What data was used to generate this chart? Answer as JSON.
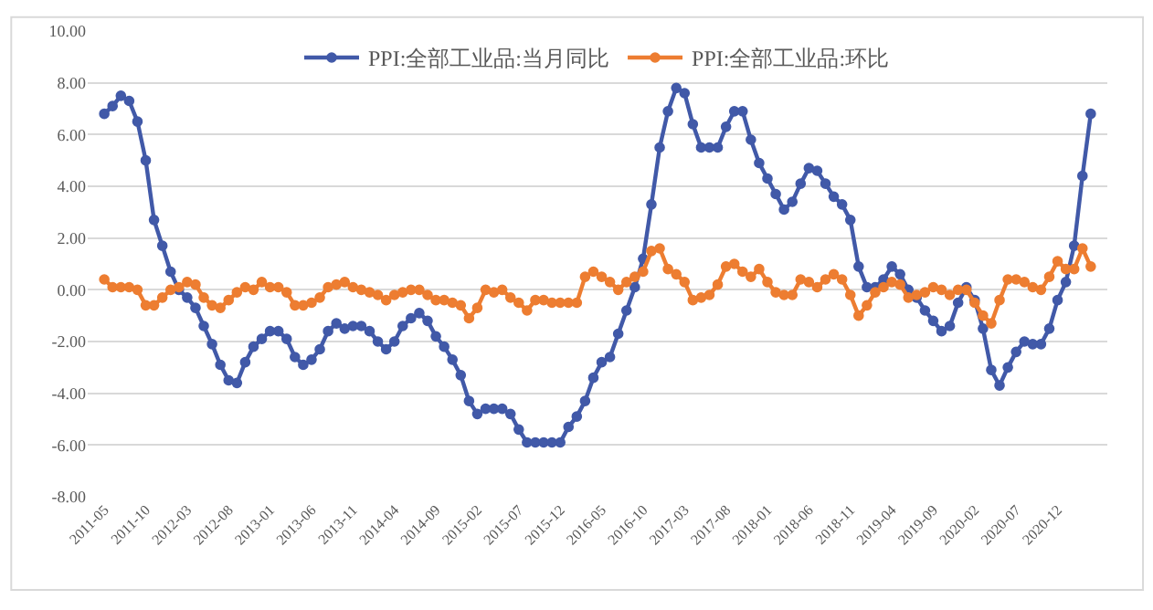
{
  "chart_data": {
    "type": "line",
    "categories": [
      "2011-05",
      null,
      null,
      null,
      null,
      "2011-10",
      null,
      null,
      null,
      null,
      "2012-03",
      null,
      null,
      null,
      null,
      "2012-08",
      null,
      null,
      null,
      null,
      "2013-01",
      null,
      null,
      null,
      null,
      "2013-06",
      null,
      null,
      null,
      null,
      "2013-11",
      null,
      null,
      null,
      null,
      "2014-04",
      null,
      null,
      null,
      null,
      "2014-09",
      null,
      null,
      null,
      null,
      "2015-02",
      null,
      null,
      null,
      null,
      "2015-07",
      null,
      null,
      null,
      null,
      "2015-12",
      null,
      null,
      null,
      null,
      "2016-05",
      null,
      null,
      null,
      null,
      "2016-10",
      null,
      null,
      null,
      null,
      "2017-03",
      null,
      null,
      null,
      null,
      "2017-08",
      null,
      null,
      null,
      null,
      "2018-01",
      null,
      null,
      null,
      null,
      "2018-06",
      null,
      null,
      null,
      null,
      "2018-11",
      null,
      null,
      null,
      null,
      "2019-04",
      null,
      null,
      null,
      null,
      "2019-09",
      null,
      null,
      null,
      null,
      "2020-02",
      null,
      null,
      null,
      null,
      "2020-07",
      null,
      null,
      null,
      null,
      "2020-12",
      null,
      null,
      null,
      null
    ],
    "ylim": [
      -8,
      10
    ],
    "yticks": [
      {
        "value": -8,
        "label": "-8.00"
      },
      {
        "value": -6,
        "label": "-6.00"
      },
      {
        "value": -4,
        "label": "-4.00"
      },
      {
        "value": -2,
        "label": "-2.00"
      },
      {
        "value": 0,
        "label": "0.00"
      },
      {
        "value": 2,
        "label": "2.00"
      },
      {
        "value": 4,
        "label": "4.00"
      },
      {
        "value": 6,
        "label": "6.00"
      },
      {
        "value": 8,
        "label": "8.00"
      },
      {
        "value": 10,
        "label": "10.00"
      }
    ],
    "grid": "y",
    "legend": "top",
    "marker": "circle",
    "line_style": "solid",
    "series": [
      {
        "name": "PPI:全部工业品:当月同比",
        "color": "#4159a8",
        "values": [
          6.8,
          7.1,
          7.5,
          7.3,
          6.5,
          5.0,
          2.7,
          1.7,
          0.7,
          0.0,
          -0.3,
          -0.7,
          -1.4,
          -2.1,
          -2.9,
          -3.5,
          -3.6,
          -2.8,
          -2.2,
          -1.9,
          -1.6,
          -1.6,
          -1.9,
          -2.6,
          -2.9,
          -2.7,
          -2.3,
          -1.6,
          -1.3,
          -1.5,
          -1.4,
          -1.4,
          -1.6,
          -2.0,
          -2.3,
          -2.0,
          -1.4,
          -1.1,
          -0.9,
          -1.2,
          -1.8,
          -2.2,
          -2.7,
          -3.3,
          -4.3,
          -4.8,
          -4.6,
          -4.6,
          -4.6,
          -4.8,
          -5.4,
          -5.9,
          -5.9,
          -5.9,
          -5.9,
          -5.9,
          -5.3,
          -4.9,
          -4.3,
          -3.4,
          -2.8,
          -2.6,
          -1.7,
          -0.8,
          0.1,
          1.2,
          3.3,
          5.5,
          6.9,
          7.8,
          7.6,
          6.4,
          5.5,
          5.5,
          5.5,
          6.3,
          6.9,
          6.9,
          5.8,
          4.9,
          4.3,
          3.7,
          3.1,
          3.4,
          4.1,
          4.7,
          4.6,
          4.1,
          3.6,
          3.3,
          2.7,
          0.9,
          0.1,
          0.1,
          0.4,
          0.9,
          0.6,
          0.0,
          -0.3,
          -0.8,
          -1.2,
          -1.6,
          -1.4,
          -0.5,
          0.1,
          -0.4,
          -1.5,
          -3.1,
          -3.7,
          -3.0,
          -2.4,
          -2.0,
          -2.1,
          -2.1,
          -1.5,
          -0.4,
          0.3,
          1.7,
          4.4,
          6.8
        ]
      },
      {
        "name": "PPI:全部工业品:环比",
        "color": "#ed7d31",
        "values": [
          0.4,
          0.1,
          0.1,
          0.1,
          0.0,
          -0.6,
          -0.6,
          -0.3,
          0.0,
          0.1,
          0.3,
          0.2,
          -0.3,
          -0.6,
          -0.7,
          -0.4,
          -0.1,
          0.1,
          0.0,
          0.3,
          0.1,
          0.1,
          -0.1,
          -0.6,
          -0.6,
          -0.5,
          -0.3,
          0.1,
          0.2,
          0.3,
          0.1,
          0.0,
          -0.1,
          -0.2,
          -0.4,
          -0.2,
          -0.1,
          0.0,
          0.0,
          -0.2,
          -0.4,
          -0.4,
          -0.5,
          -0.6,
          -1.1,
          -0.7,
          0.0,
          -0.1,
          0.0,
          -0.3,
          -0.5,
          -0.8,
          -0.4,
          -0.4,
          -0.5,
          -0.5,
          -0.5,
          -0.5,
          0.5,
          0.7,
          0.5,
          0.3,
          0.0,
          0.3,
          0.5,
          0.7,
          1.5,
          1.6,
          0.8,
          0.6,
          0.3,
          -0.4,
          -0.3,
          -0.2,
          0.2,
          0.9,
          1.0,
          0.7,
          0.5,
          0.8,
          0.3,
          -0.1,
          -0.2,
          -0.2,
          0.4,
          0.3,
          0.1,
          0.4,
          0.6,
          0.4,
          -0.2,
          -1.0,
          -0.6,
          -0.1,
          0.1,
          0.3,
          0.2,
          -0.3,
          -0.2,
          -0.1,
          0.1,
          0.0,
          -0.2,
          0.0,
          0.0,
          -0.5,
          -1.0,
          -1.3,
          -0.4,
          0.4,
          0.4,
          0.3,
          0.1,
          0.0,
          0.5,
          1.1,
          0.8,
          0.8,
          1.6,
          0.9
        ]
      }
    ]
  }
}
